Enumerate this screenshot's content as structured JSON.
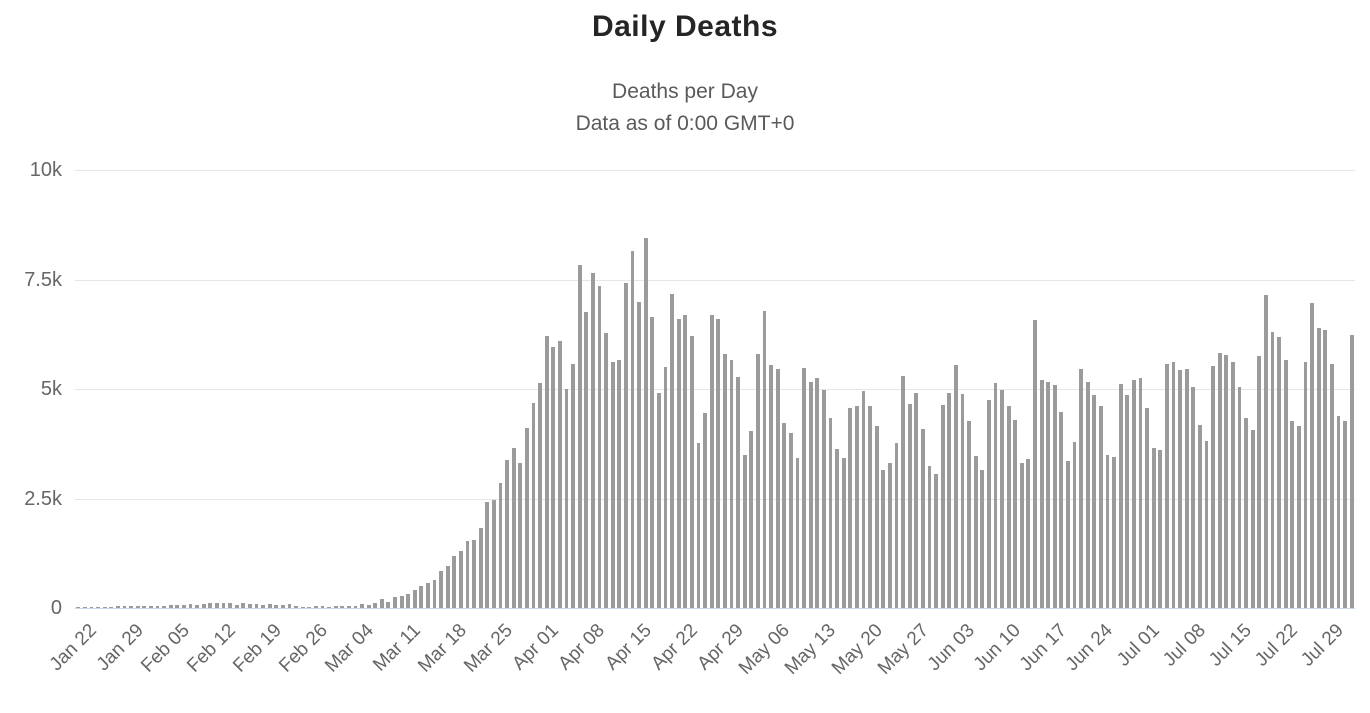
{
  "title": "Daily Deaths",
  "subtitle_line1": "Deaths per Day",
  "subtitle_line2": "Data as of 0:00 GMT+0",
  "colors": {
    "bar": "#9b9b9b",
    "title": "#252525",
    "subtitle": "#5a5a5a",
    "axis_label": "#666666",
    "gridline": "#e6e6e6",
    "baseline": "#ccd6eb",
    "background": "#ffffff"
  },
  "chart_data": {
    "type": "bar",
    "title": "Daily Deaths",
    "subtitle": [
      "Deaths per Day",
      "Data as of 0:00 GMT+0"
    ],
    "xlabel": "",
    "ylabel": "",
    "ylim": [
      0,
      10000
    ],
    "grid": "horizontal",
    "legend": "none",
    "x_start": "Jan 22",
    "x_end": "Aug 02",
    "x_tick_every": 7,
    "x_tick_labels": [
      "Jan 22",
      "Jan 29",
      "Feb 05",
      "Feb 12",
      "Feb 19",
      "Feb 26",
      "Mar 04",
      "Mar 11",
      "Mar 18",
      "Mar 25",
      "Apr 01",
      "Apr 08",
      "Apr 15",
      "Apr 22",
      "Apr 29",
      "May 06",
      "May 13",
      "May 20",
      "May 27",
      "Jun 03",
      "Jun 10",
      "Jun 17",
      "Jun 24",
      "Jul 01",
      "Jul 08",
      "Jul 15",
      "Jul 22",
      "Jul 29"
    ],
    "y_tick_labels": [
      "0",
      "2.5k",
      "5k",
      "7.5k",
      "10k"
    ],
    "values": [
      10,
      15,
      15,
      25,
      25,
      30,
      40,
      45,
      45,
      45,
      45,
      45,
      55,
      55,
      60,
      65,
      70,
      80,
      65,
      95,
      105,
      110,
      115,
      105,
      70,
      105,
      95,
      100,
      65,
      100,
      60,
      60,
      90,
      45,
      30,
      30,
      35,
      35,
      30,
      35,
      45,
      45,
      50,
      80,
      70,
      110,
      200,
      140,
      240,
      270,
      320,
      400,
      500,
      560,
      650,
      840,
      960,
      1190,
      1300,
      1540,
      1550,
      1820,
      2420,
      2470,
      2860,
      3390,
      3650,
      3300,
      4120,
      4670,
      5140,
      6210,
      5950,
      6100,
      5000,
      5560,
      7840,
      6750,
      7640,
      7350,
      6270,
      5620,
      5660,
      7410,
      8150,
      6980,
      8440,
      6650,
      4900,
      5510,
      7180,
      6590,
      6700,
      6200,
      3760,
      4460,
      6690,
      6590,
      5800,
      5660,
      5280,
      3490,
      4030,
      5800,
      6790,
      5550,
      5450,
      4230,
      4000,
      3420,
      5490,
      5170,
      5240,
      4980,
      4330,
      3620,
      3430,
      4560,
      4610,
      4950,
      4610,
      4150,
      3150,
      3300,
      3760,
      5300,
      4650,
      4900,
      4090,
      3240,
      3050,
      4630,
      4900,
      5550,
      4880,
      4270,
      3480,
      3150,
      4750,
      5130,
      4980,
      4610,
      4290,
      3300,
      3400,
      6580,
      5200,
      5150,
      5100,
      4470,
      3350,
      3800,
      5460,
      5150,
      4870,
      4610,
      3490,
      3440,
      5110,
      4860,
      5210,
      5240,
      4560,
      3660,
      3610,
      5560,
      5610,
      5430,
      5450,
      5040,
      4180,
      3810,
      5520,
      5830,
      5780,
      5620,
      5050,
      4330,
      4060,
      5750,
      7150,
      6310,
      6180,
      5660,
      4280,
      4150,
      5620,
      6970,
      6400,
      6350,
      5560,
      4380,
      4270,
      6230
    ]
  }
}
